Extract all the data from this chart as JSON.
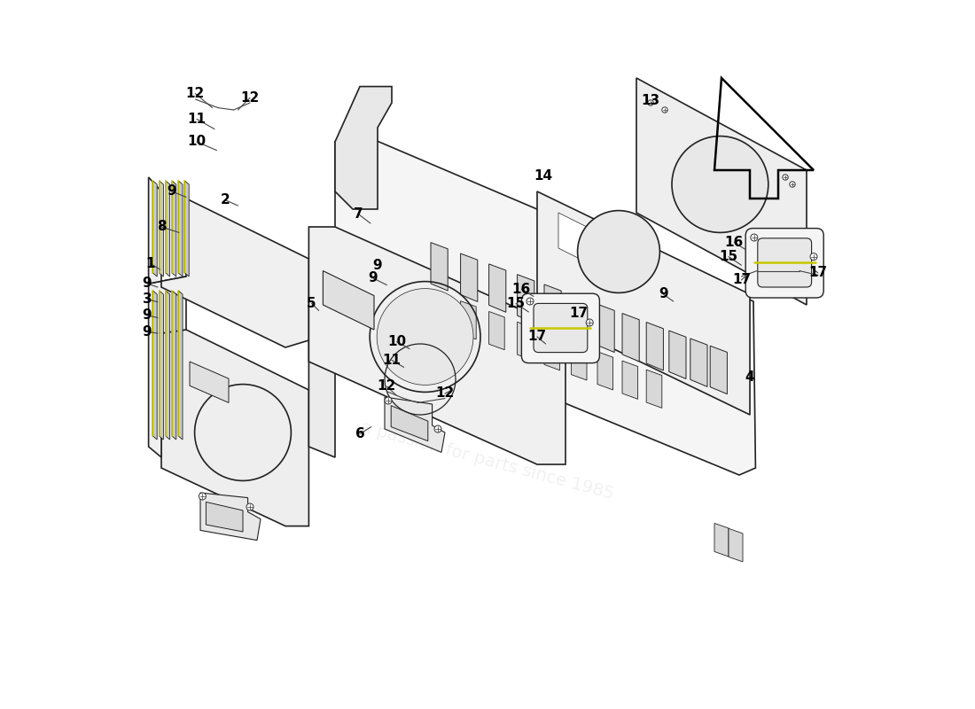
{
  "bg_color": "#ffffff",
  "line_color": "#222222",
  "label_color": "#000000",
  "label_fontsize": 11,
  "watermark_color": "#c8c8c8",
  "slot_fc": "#d8d8d8",
  "panel_fc": "#f0f0f0",
  "panel_fc2": "#eeeeee",
  "yellow": "#c8c800"
}
